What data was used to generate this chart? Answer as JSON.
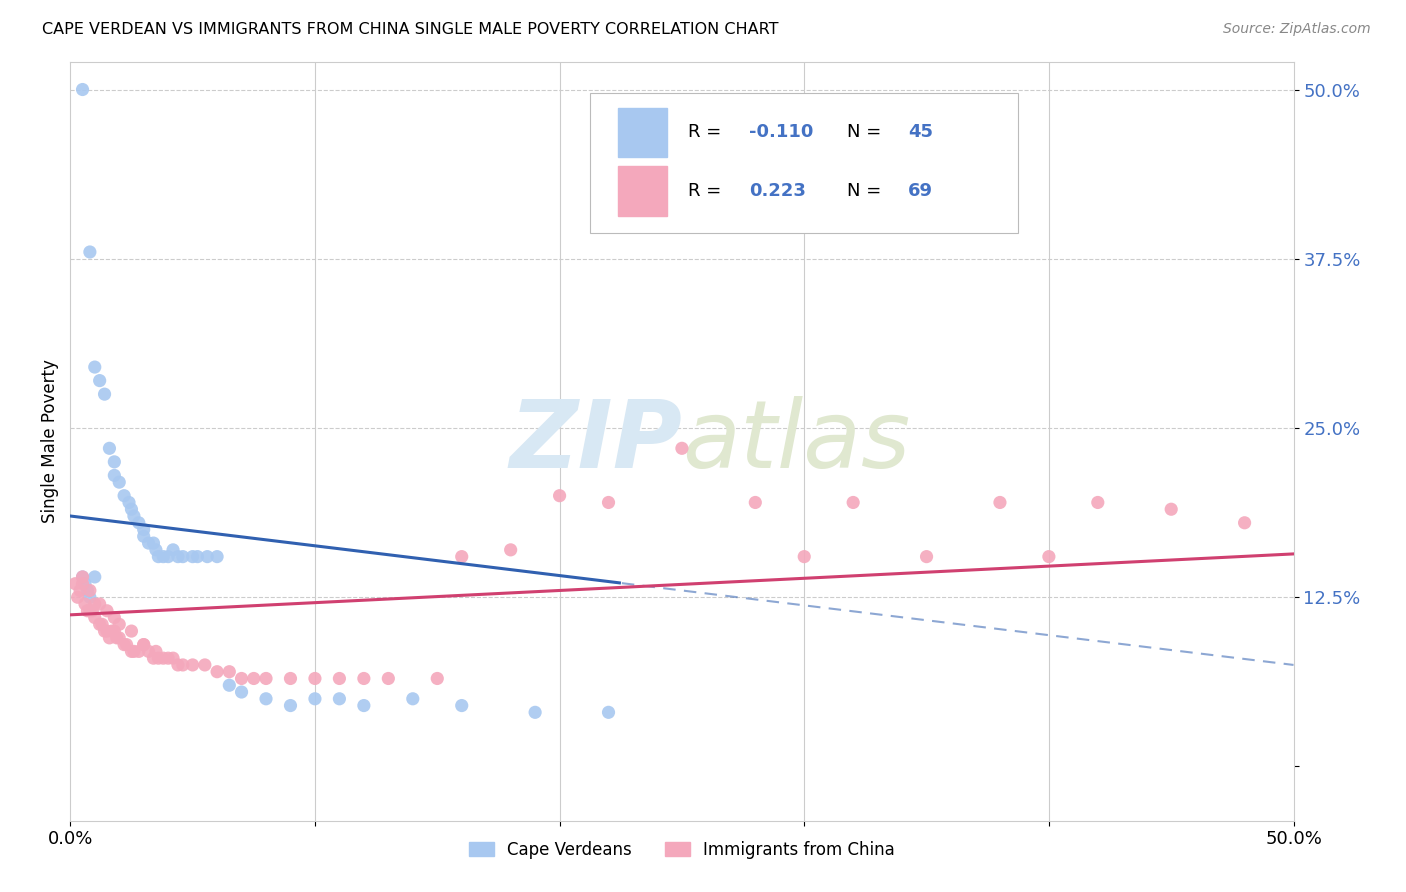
{
  "title": "CAPE VERDEAN VS IMMIGRANTS FROM CHINA SINGLE MALE POVERTY CORRELATION CHART",
  "source": "Source: ZipAtlas.com",
  "ylabel": "Single Male Poverty",
  "xmin": 0.0,
  "xmax": 0.5,
  "ymin": -0.04,
  "ymax": 0.52,
  "blue_color": "#a8c8f0",
  "pink_color": "#f4a8bc",
  "trend_blue": "#3060b0",
  "trend_pink": "#d04070",
  "watermark_color": "#d8e8f4",
  "ytick_color": "#4472c4",
  "blue_x": [
    0.005,
    0.008,
    0.01,
    0.012,
    0.014,
    0.016,
    0.018,
    0.018,
    0.02,
    0.022,
    0.024,
    0.025,
    0.026,
    0.028,
    0.03,
    0.03,
    0.032,
    0.034,
    0.035,
    0.036,
    0.038,
    0.04,
    0.042,
    0.044,
    0.046,
    0.05,
    0.052,
    0.056,
    0.06,
    0.065,
    0.07,
    0.08,
    0.09,
    0.1,
    0.11,
    0.12,
    0.14,
    0.16,
    0.19,
    0.22,
    0.005,
    0.006,
    0.007,
    0.008,
    0.01
  ],
  "blue_y": [
    0.5,
    0.38,
    0.295,
    0.285,
    0.275,
    0.235,
    0.225,
    0.215,
    0.21,
    0.2,
    0.195,
    0.19,
    0.185,
    0.18,
    0.175,
    0.17,
    0.165,
    0.165,
    0.16,
    0.155,
    0.155,
    0.155,
    0.16,
    0.155,
    0.155,
    0.155,
    0.155,
    0.155,
    0.155,
    0.06,
    0.055,
    0.05,
    0.045,
    0.05,
    0.05,
    0.045,
    0.05,
    0.045,
    0.04,
    0.04,
    0.14,
    0.135,
    0.13,
    0.125,
    0.14
  ],
  "pink_x": [
    0.002,
    0.003,
    0.004,
    0.005,
    0.006,
    0.007,
    0.008,
    0.009,
    0.01,
    0.01,
    0.012,
    0.013,
    0.014,
    0.015,
    0.016,
    0.017,
    0.018,
    0.019,
    0.02,
    0.022,
    0.023,
    0.025,
    0.026,
    0.028,
    0.03,
    0.032,
    0.034,
    0.036,
    0.038,
    0.04,
    0.042,
    0.044,
    0.046,
    0.05,
    0.055,
    0.06,
    0.065,
    0.07,
    0.075,
    0.08,
    0.09,
    0.1,
    0.11,
    0.12,
    0.13,
    0.15,
    0.16,
    0.18,
    0.2,
    0.22,
    0.25,
    0.28,
    0.3,
    0.32,
    0.35,
    0.38,
    0.4,
    0.42,
    0.45,
    0.48,
    0.005,
    0.008,
    0.012,
    0.015,
    0.018,
    0.02,
    0.025,
    0.03,
    0.035
  ],
  "pink_y": [
    0.135,
    0.125,
    0.13,
    0.135,
    0.12,
    0.115,
    0.115,
    0.115,
    0.12,
    0.11,
    0.105,
    0.105,
    0.1,
    0.1,
    0.095,
    0.1,
    0.1,
    0.095,
    0.095,
    0.09,
    0.09,
    0.085,
    0.085,
    0.085,
    0.09,
    0.085,
    0.08,
    0.08,
    0.08,
    0.08,
    0.08,
    0.075,
    0.075,
    0.075,
    0.075,
    0.07,
    0.07,
    0.065,
    0.065,
    0.065,
    0.065,
    0.065,
    0.065,
    0.065,
    0.065,
    0.065,
    0.155,
    0.16,
    0.2,
    0.195,
    0.235,
    0.195,
    0.155,
    0.195,
    0.155,
    0.195,
    0.155,
    0.195,
    0.19,
    0.18,
    0.14,
    0.13,
    0.12,
    0.115,
    0.11,
    0.105,
    0.1,
    0.09,
    0.085
  ]
}
